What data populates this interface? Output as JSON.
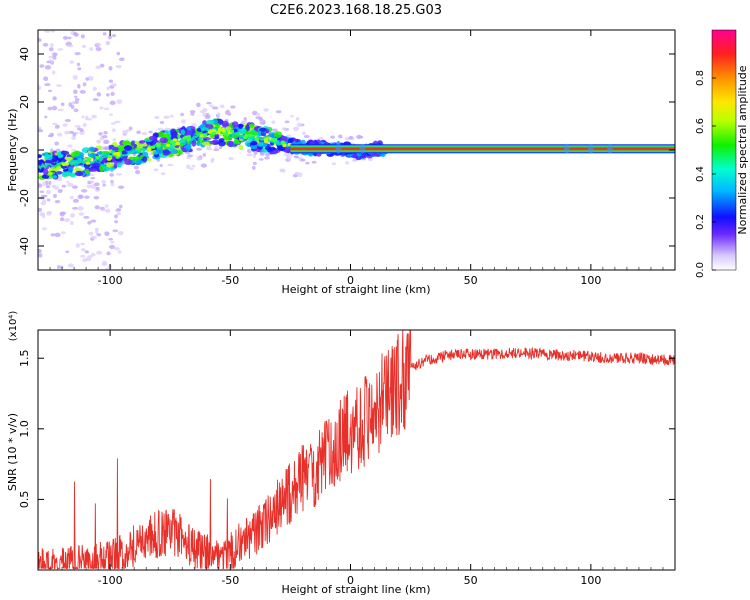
{
  "title": "C2E6.2023.168.18.25.G03",
  "colors": {
    "snr_line": "#e8302a",
    "track_core": "#e8303a",
    "scatter": "#a070f0"
  },
  "chart_data": [
    {
      "type": "heatmap",
      "xlabel": "Height of straight line (km)",
      "ylabel": "Frequency (Hz)",
      "xlim": [
        -130,
        135
      ],
      "ylim": [
        -50,
        50
      ],
      "x_ticks": [
        -100,
        -50,
        0,
        50,
        100
      ],
      "y_ticks": [
        -40,
        -20,
        0,
        20,
        40
      ],
      "x_tick_labels": [
        "-100",
        "-50",
        "0",
        "50",
        "100"
      ],
      "y_tick_labels": [
        "-40",
        "-20",
        "0",
        "20",
        "40"
      ],
      "trend": [
        {
          "x": -130,
          "y": -7
        },
        {
          "x": -110,
          "y": -5
        },
        {
          "x": -90,
          "y": -1
        },
        {
          "x": -70,
          "y": 4
        },
        {
          "x": -55,
          "y": 8
        },
        {
          "x": -45,
          "y": 6
        },
        {
          "x": -38,
          "y": 5
        },
        {
          "x": -30,
          "y": 3
        },
        {
          "x": -20,
          "y": 1
        },
        {
          "x": -10,
          "y": 0.5
        },
        {
          "x": 0,
          "y": 0
        },
        {
          "x": 5,
          "y": -1
        },
        {
          "x": 10,
          "y": 0.5
        },
        {
          "x": 135,
          "y": 0.5
        }
      ],
      "colorbar": {
        "label": "Normalized spectral amplitude",
        "range": [
          0,
          1
        ],
        "ticks": [
          0.0,
          0.2,
          0.4,
          0.6,
          0.8
        ],
        "tick_labels": [
          "0.0",
          "0.2",
          "0.4",
          "0.6",
          "0.8"
        ]
      }
    },
    {
      "type": "line",
      "xlabel": "Height of straight line (km)",
      "ylabel": "SNR (10 * v/v)",
      "y_multiplier": "(x10⁴)",
      "xlim": [
        -130,
        135
      ],
      "ylim": [
        0,
        1.7
      ],
      "x_ticks": [
        -100,
        -50,
        0,
        50,
        100
      ],
      "y_ticks": [
        0.5,
        1.0,
        1.5
      ],
      "x_tick_labels": [
        "-100",
        "-50",
        "0",
        "50",
        "100"
      ],
      "y_tick_labels": [
        "0.5",
        "1.0",
        "1.5"
      ],
      "series": [
        {
          "x": [
            -130,
            -120,
            -110,
            -100,
            -95,
            -90,
            -85,
            -80,
            -75,
            -70,
            -65,
            -60,
            -55,
            -50,
            -45,
            -40,
            -35,
            -32,
            -30,
            -28,
            -25,
            -20,
            -15,
            -10,
            -5,
            0,
            5,
            8,
            10,
            15,
            20,
            25,
            30,
            40,
            50,
            60,
            70,
            80,
            90,
            95,
            100,
            110,
            120,
            135
          ],
          "y": [
            0.03,
            0.04,
            0.05,
            0.08,
            0.12,
            0.18,
            0.22,
            0.25,
            0.28,
            0.22,
            0.15,
            0.12,
            0.1,
            0.12,
            0.2,
            0.25,
            0.35,
            0.4,
            0.45,
            0.5,
            0.55,
            0.65,
            0.7,
            0.8,
            0.9,
            1.0,
            1.05,
            1.1,
            1.15,
            1.2,
            1.3,
            1.42,
            1.48,
            1.52,
            1.53,
            1.53,
            1.54,
            1.53,
            1.52,
            1.52,
            1.51,
            1.5,
            1.5,
            1.48
          ]
        }
      ]
    }
  ]
}
